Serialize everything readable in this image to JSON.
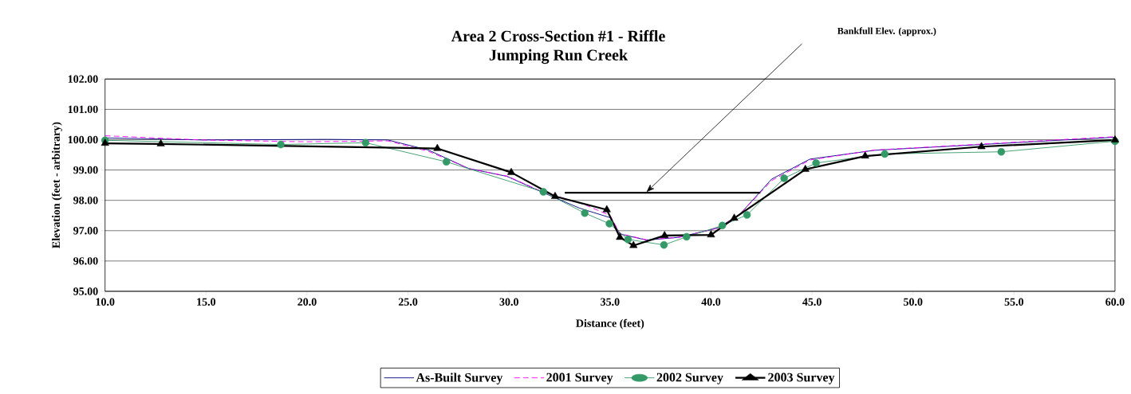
{
  "chart_data": {
    "type": "line",
    "title": "Area 2 Cross-Section #1 - Riffle",
    "subtitle": "Jumping Run Creek",
    "xlabel": "Distance (feet)",
    "ylabel": "Elevation (feet - arbitrary)",
    "xlim": [
      10,
      60
    ],
    "ylim": [
      95,
      102
    ],
    "xticks": [
      {
        "value": 10,
        "label": "10.0"
      },
      {
        "value": 15,
        "label": "15.0"
      },
      {
        "value": 20,
        "label": "20.0"
      },
      {
        "value": 25,
        "label": "25.0"
      },
      {
        "value": 30,
        "label": "30.0"
      },
      {
        "value": 35,
        "label": "35.0"
      },
      {
        "value": 40,
        "label": "40.0"
      },
      {
        "value": 45,
        "label": "45.0"
      },
      {
        "value": 50,
        "label": "50.0"
      },
      {
        "value": 55,
        "label": "55.0"
      },
      {
        "value": 60,
        "label": "60.0"
      }
    ],
    "yticks": [
      {
        "value": 95,
        "label": "95.00"
      },
      {
        "value": 96,
        "label": "96.00"
      },
      {
        "value": 97,
        "label": "97.00"
      },
      {
        "value": 98,
        "label": "98.00"
      },
      {
        "value": 99,
        "label": "99.00"
      },
      {
        "value": 100,
        "label": "100.00"
      },
      {
        "value": 101,
        "label": "101.00"
      },
      {
        "value": 102,
        "label": "102.00"
      }
    ],
    "grid": "y",
    "legend": "bottom",
    "annotations": [
      "Bankfull Elev. (approx.)"
    ],
    "series": [
      {
        "name": "As-Built Survey",
        "color": "#000080",
        "marker": "none",
        "line_style": "solid",
        "x": [
          10,
          14.8,
          21.0,
          24.0,
          26.0,
          28.0,
          29.9,
          31.7,
          33.5,
          35.0,
          35.5,
          36.8,
          38.4,
          40.3,
          41.4,
          43.0,
          44.9,
          48.1,
          60
        ],
        "values": [
          100.06,
          99.99,
          100.01,
          99.99,
          99.66,
          99.05,
          98.79,
          98.25,
          97.74,
          97.43,
          96.89,
          96.69,
          96.78,
          97.08,
          97.52,
          98.7,
          99.36,
          99.65,
          100.08
        ]
      },
      {
        "name": "2001 Survey",
        "color": "#ff00ff",
        "marker": "none",
        "line_style": "dashed",
        "x": [
          10,
          14.8,
          20.0,
          24.0,
          26.0,
          28.0,
          29.9,
          31.7,
          33.7,
          35.0,
          35.5,
          36.8,
          38.4,
          40.3,
          41.4,
          43.0,
          44.9,
          48.1,
          60
        ],
        "values": [
          100.13,
          99.99,
          99.93,
          99.96,
          99.62,
          99.05,
          98.8,
          98.27,
          97.87,
          97.5,
          96.9,
          96.7,
          96.78,
          97.08,
          97.52,
          98.65,
          99.33,
          99.66,
          100.1
        ]
      },
      {
        "name": "2002 Survey",
        "color": "#339966",
        "marker": "circle",
        "line_style": "solid",
        "x": [
          10,
          18.7,
          22.9,
          26.9,
          31.7,
          33.75,
          34.97,
          35.89,
          37.67,
          38.79,
          40.56,
          41.78,
          43.62,
          45.2,
          48.6,
          54.37,
          60
        ],
        "values": [
          99.98,
          99.84,
          99.9,
          99.27,
          98.28,
          97.58,
          97.23,
          96.71,
          96.53,
          96.8,
          97.17,
          97.52,
          98.73,
          99.23,
          99.53,
          99.6,
          99.95
        ]
      },
      {
        "name": "2003 Survey",
        "color": "#000000",
        "marker": "triangle",
        "line_style": "solid",
        "x": [
          10,
          12.76,
          26.45,
          30.11,
          32.28,
          34.84,
          35.49,
          36.16,
          37.7,
          40.0,
          41.15,
          44.67,
          47.63,
          53.39,
          60
        ],
        "values": [
          99.88,
          99.86,
          99.71,
          98.92,
          98.13,
          97.69,
          96.78,
          96.51,
          96.84,
          96.86,
          97.41,
          99.02,
          99.46,
          99.77,
          99.99
        ]
      },
      {
        "color": "#000000",
        "marker": "none",
        "line_style": "solid",
        "x": [
          32.76,
          42.44
        ],
        "values": [
          98.25,
          98.25
        ]
      }
    ]
  }
}
